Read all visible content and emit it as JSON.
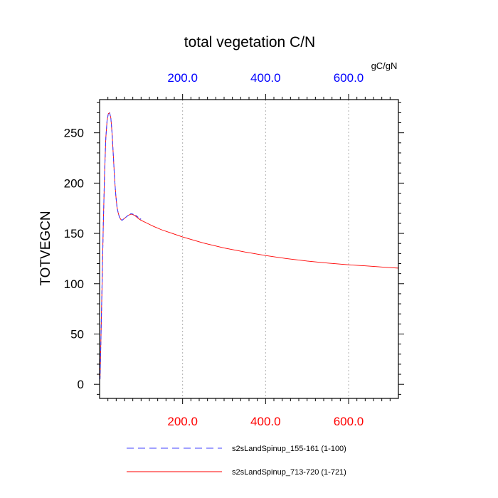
{
  "chart_data": {
    "type": "line",
    "title": "total vegetation C/N",
    "units": "gC/gN",
    "ylabel": "TOTVEGCN",
    "xlabel": "",
    "xlim": [
      0,
      720
    ],
    "ylim": [
      -14,
      283
    ],
    "x_ticks": [
      200,
      400,
      600
    ],
    "x_tick_labels": [
      "200.0",
      "400.0",
      "600.0"
    ],
    "y_ticks": [
      0,
      50,
      100,
      150,
      200,
      250
    ],
    "y_tick_labels": [
      "0",
      "50",
      "100",
      "150",
      "200",
      "250"
    ],
    "grid": "vertical-dotted",
    "colors": {
      "bottom_ticks": "#ff0000",
      "top_ticks": "#0000ff"
    },
    "series": [
      {
        "name": "s2sLandSpinup_155-161 (1-100)",
        "color": "#4040ff",
        "style": "dashed",
        "x": [
          1,
          3,
          6,
          9,
          12,
          15,
          18,
          21,
          24,
          27,
          30,
          33,
          36,
          39,
          42,
          45,
          48,
          51,
          54,
          57,
          60,
          63,
          66,
          69,
          72,
          75,
          78,
          81,
          84,
          87,
          90,
          93,
          96,
          100
        ],
        "y": [
          5,
          40,
          100,
          160,
          210,
          245,
          262,
          269,
          270,
          265,
          250,
          228,
          205,
          188,
          176,
          170,
          166,
          164,
          163,
          164,
          165,
          166,
          167,
          168,
          169,
          169.5,
          169.5,
          169,
          168.5,
          168,
          167,
          166,
          165,
          164
        ]
      },
      {
        "name": "s2sLandSpinup_713-720 (1-721)",
        "color": "#ff0000",
        "style": "solid",
        "x": [
          1,
          3,
          6,
          9,
          12,
          15,
          18,
          21,
          24,
          27,
          30,
          33,
          36,
          39,
          42,
          45,
          48,
          51,
          54,
          57,
          60,
          63,
          66,
          69,
          72,
          75,
          78,
          81,
          84,
          87,
          90,
          93,
          96,
          100,
          110,
          120,
          130,
          150,
          175,
          200,
          250,
          300,
          350,
          400,
          450,
          500,
          550,
          600,
          650,
          700,
          720
        ],
        "y": [
          5,
          40,
          100,
          160,
          210,
          245,
          262,
          269,
          270,
          265,
          250,
          228,
          205,
          188,
          176,
          170,
          166,
          164,
          163,
          164,
          165,
          166,
          167,
          168,
          168.5,
          169,
          169,
          168.5,
          168,
          167,
          166,
          165,
          164,
          163,
          161,
          159,
          157,
          153.5,
          150,
          146.5,
          140.5,
          135.5,
          131.5,
          128,
          125,
          122.5,
          120.5,
          118.8,
          117.5,
          116,
          115.5
        ]
      }
    ]
  }
}
